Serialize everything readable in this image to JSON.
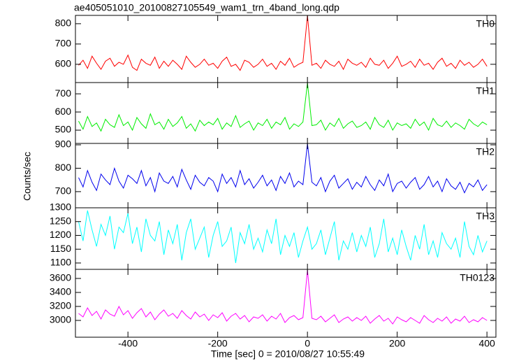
{
  "title": "ae405051010_20100827105549_wam1_trn_4band_long.qdp",
  "chart_data": {
    "type": "line",
    "xlabel": "Time [sec] 0 = 2010/08/27 10:55:49",
    "ylabel": "Counts/sec",
    "xlim": [
      -517,
      420
    ],
    "xticks": [
      -400,
      -200,
      0,
      200,
      400
    ],
    "x": [
      -510,
      -500,
      -490,
      -480,
      -470,
      -460,
      -450,
      -440,
      -430,
      -420,
      -410,
      -400,
      -390,
      -380,
      -370,
      -360,
      -350,
      -340,
      -330,
      -320,
      -310,
      -300,
      -290,
      -280,
      -270,
      -260,
      -250,
      -240,
      -230,
      -220,
      -210,
      -200,
      -190,
      -180,
      -170,
      -160,
      -150,
      -140,
      -130,
      -120,
      -110,
      -100,
      -90,
      -80,
      -70,
      -60,
      -50,
      -40,
      -30,
      -20,
      -10,
      0,
      10,
      20,
      30,
      40,
      50,
      60,
      70,
      80,
      90,
      100,
      110,
      120,
      130,
      140,
      150,
      160,
      170,
      180,
      190,
      200,
      210,
      220,
      230,
      240,
      250,
      260,
      270,
      280,
      290,
      300,
      310,
      320,
      330,
      340,
      350,
      360,
      370,
      380,
      390,
      400
    ],
    "series": [
      {
        "name": "TH0",
        "color": "#ff0000",
        "ylim": [
          510,
          841
        ],
        "yticks": [
          600,
          700,
          800
        ],
        "values": [
          595,
          620,
          580,
          640,
          605,
          575,
          615,
          630,
          590,
          610,
          600,
          645,
          585,
          570,
          625,
          605,
          595,
          635,
          580,
          615,
          590,
          620,
          600,
          575,
          640,
          610,
          585,
          600,
          625,
          595,
          605,
          580,
          615,
          635,
          590,
          600,
          570,
          620,
          610,
          585,
          600,
          625,
          590,
          605,
          575,
          615,
          595,
          630,
          585,
          600,
          610,
          840,
          595,
          605,
          580,
          620,
          600,
          590,
          615,
          575,
          625,
          605,
          595,
          610,
          585,
          630,
          600,
          595,
          620,
          580,
          605,
          640,
          590,
          600,
          615,
          585,
          625,
          595,
          605,
          575,
          610,
          630,
          590,
          605,
          580,
          620,
          595,
          610,
          585,
          600,
          625,
          590
        ]
      },
      {
        "name": "TH1",
        "color": "#00ee00",
        "ylim": [
          427,
          762
        ],
        "yticks": [
          500,
          600,
          700
        ],
        "values": [
          550,
          505,
          575,
          520,
          540,
          495,
          560,
          530,
          515,
          585,
          525,
          545,
          500,
          570,
          535,
          510,
          590,
          530,
          545,
          505,
          560,
          520,
          540,
          575,
          510,
          535,
          495,
          555,
          525,
          545,
          530,
          565,
          505,
          540,
          520,
          580,
          515,
          535,
          550,
          500,
          540,
          525,
          560,
          510,
          545,
          530,
          570,
          505,
          535,
          520,
          545,
          760,
          525,
          530,
          555,
          500,
          540,
          520,
          565,
          510,
          535,
          550,
          515,
          525,
          545,
          505,
          570,
          530,
          515,
          555,
          500,
          540,
          525,
          535,
          510,
          560,
          525,
          545,
          500,
          565,
          530,
          520,
          550,
          515,
          540,
          525,
          505,
          560,
          535,
          520,
          545,
          530
        ]
      },
      {
        "name": "TH2",
        "color": "#0000ee",
        "ylim": [
          631,
          906
        ],
        "yticks": [
          700,
          800,
          900
        ],
        "values": [
          760,
          720,
          790,
          740,
          705,
          775,
          750,
          730,
          800,
          745,
          715,
          770,
          755,
          735,
          790,
          725,
          760,
          700,
          780,
          745,
          735,
          765,
          720,
          795,
          750,
          710,
          770,
          740,
          725,
          760,
          745,
          700,
          775,
          735,
          760,
          720,
          790,
          730,
          755,
          715,
          740,
          770,
          725,
          750,
          705,
          765,
          735,
          780,
          720,
          745,
          730,
          905,
          740,
          725,
          760,
          700,
          745,
          770,
          715,
          735,
          755,
          710,
          740,
          720,
          765,
          730,
          705,
          750,
          725,
          775,
          700,
          735,
          745,
          715,
          740,
          760,
          710,
          730,
          765,
          720,
          745,
          700,
          755,
          725,
          710,
          740,
          695,
          735,
          720,
          750,
          705,
          730
        ]
      },
      {
        "name": "TH3",
        "color": "#00ffff",
        "ylim": [
          1077,
          1300
        ],
        "yticks": [
          1100,
          1150,
          1200,
          1250,
          1300
        ],
        "values": [
          1250,
          1180,
          1290,
          1220,
          1160,
          1240,
          1200,
          1270,
          1150,
          1230,
          1210,
          1280,
          1170,
          1230,
          1140,
          1260,
          1200,
          1180,
          1250,
          1130,
          1220,
          1170,
          1240,
          1110,
          1210,
          1260,
          1150,
          1190,
          1230,
          1120,
          1200,
          1250,
          1160,
          1180,
          1230,
          1100,
          1210,
          1170,
          1240,
          1150,
          1190,
          1140,
          1220,
          1170,
          1260,
          1130,
          1200,
          1160,
          1210,
          1120,
          1180,
          1230,
          1150,
          1170,
          1220,
          1130,
          1190,
          1250,
          1110,
          1180,
          1150,
          1210,
          1140,
          1200,
          1160,
          1230,
          1120,
          1170,
          1260,
          1140,
          1190,
          1130,
          1220,
          1160,
          1110,
          1200,
          1150,
          1240,
          1130,
          1180,
          1120,
          1210,
          1170,
          1150,
          1190,
          1120,
          1250,
          1160,
          1130,
          1200,
          1140,
          1180
        ]
      },
      {
        "name": "TH0123",
        "color": "#ff00ff",
        "ylim": [
          2760,
          3730
        ],
        "yticks": [
          3000,
          3200,
          3400,
          3600
        ],
        "values": [
          3100,
          3050,
          3180,
          3070,
          3130,
          3020,
          3150,
          3090,
          3060,
          3200,
          3080,
          3140,
          3030,
          3110,
          3170,
          3050,
          3120,
          3010,
          3090,
          3150,
          3060,
          3100,
          3030,
          3140,
          3070,
          3020,
          3120,
          3050,
          3090,
          3000,
          3080,
          3040,
          3110,
          2990,
          3060,
          3100,
          3020,
          3070,
          2980,
          3050,
          3030,
          3080,
          2990,
          3060,
          3020,
          3100,
          2970,
          3040,
          3070,
          3010,
          3040,
          3720,
          3030,
          3010,
          3060,
          2980,
          3030,
          3080,
          2970,
          3020,
          3050,
          2990,
          3040,
          3000,
          3060,
          2960,
          3020,
          3070,
          2990,
          3030,
          2950,
          3050,
          3010,
          2980,
          3040,
          3000,
          2960,
          3070,
          3010,
          2970,
          3030,
          2990,
          3050,
          2960,
          3020,
          2990,
          3060,
          2970,
          3010,
          2980,
          3040,
          3000
        ]
      }
    ]
  }
}
